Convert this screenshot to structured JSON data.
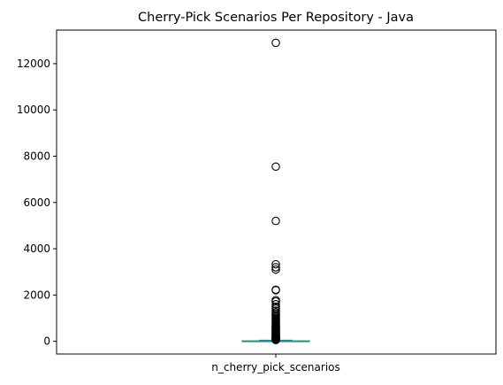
{
  "chart_data": {
    "type": "box",
    "title": "Cherry-Pick Scenarios Per Repository - Java",
    "xlabel": "",
    "ylabel": "",
    "categories": [
      "n_cherry_pick_scenarios"
    ],
    "ylim": [
      -550,
      13450
    ],
    "yticks": [
      0,
      2000,
      4000,
      6000,
      8000,
      10000,
      12000
    ],
    "grid": false,
    "box": {
      "min": 0,
      "q1": 2,
      "median": 6,
      "q3": 20,
      "whisker_low": 0,
      "whisker_high": 47,
      "median_color": "#2ca02c",
      "box_color": "#1f77b4"
    },
    "outliers": [
      12900,
      7550,
      5200,
      3330,
      3200,
      3100,
      2230,
      2210,
      1780,
      1720,
      1600,
      1500,
      1420,
      1320,
      1250,
      1190,
      1130,
      1070,
      1020,
      980,
      930,
      890,
      850,
      810,
      770,
      740,
      700,
      670,
      640,
      610,
      580,
      550,
      520,
      490,
      460,
      430,
      400,
      375,
      350,
      325,
      300,
      280,
      260,
      240,
      220,
      200,
      185,
      170,
      155,
      140,
      125,
      110,
      100,
      90,
      80,
      70,
      62,
      55
    ]
  }
}
